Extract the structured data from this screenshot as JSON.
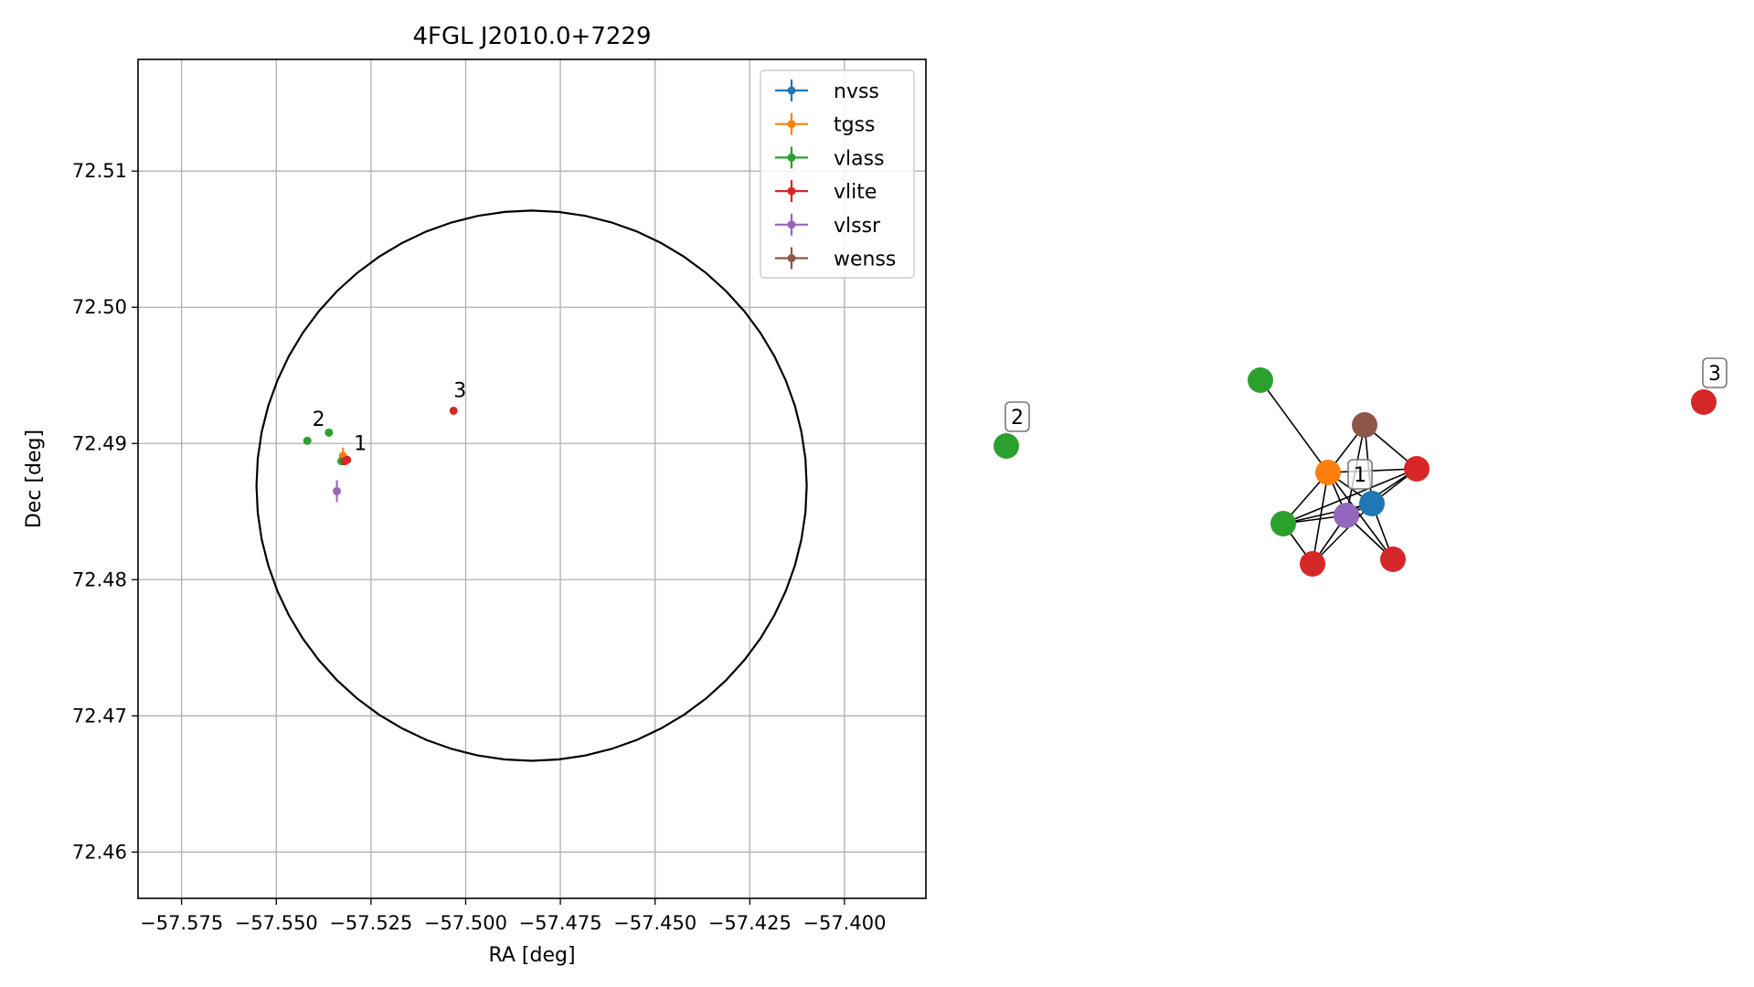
{
  "chart_data": [
    {
      "type": "scatter",
      "title": "4FGL J2010.0+7229",
      "xlabel": "RA [deg]",
      "ylabel": "Dec [deg]",
      "xlim": [
        -57.5865,
        -57.3785
      ],
      "ylim": [
        72.4566,
        72.5182
      ],
      "xticks": [
        -57.575,
        -57.55,
        -57.525,
        -57.5,
        -57.475,
        -57.45,
        -57.425,
        -57.4
      ],
      "xtick_labels": [
        "−57.575",
        "−57.550",
        "−57.525",
        "−57.500",
        "−57.475",
        "−57.450",
        "−57.425",
        "−57.400"
      ],
      "yticks": [
        72.46,
        72.47,
        72.48,
        72.49,
        72.5,
        72.51
      ],
      "ytick_labels": [
        "72.46",
        "72.47",
        "72.48",
        "72.49",
        "72.50",
        "72.51"
      ],
      "grid": true,
      "legend_position": "top-right",
      "circle": {
        "center_ra": -57.4826,
        "center_dec": 72.4869,
        "radius_dec": 0.0202,
        "color": "#000000"
      },
      "series": [
        {
          "name": "nvss",
          "color": "#1f77b4",
          "points": [
            {
              "x": -57.5323,
              "y": 72.4888,
              "xerr": 0.0008,
              "yerr": 0.0004
            }
          ]
        },
        {
          "name": "tgss",
          "color": "#ff7f0e",
          "points": [
            {
              "x": -57.5324,
              "y": 72.4891,
              "xerr": 0.0006,
              "yerr": 0.0006
            }
          ]
        },
        {
          "name": "vlass",
          "color": "#2ca02c",
          "points": [
            {
              "x": -57.5418,
              "y": 72.4902,
              "xerr": 0.0001,
              "yerr": 0.0001
            },
            {
              "x": -57.5361,
              "y": 72.4908,
              "xerr": 0.0001,
              "yerr": 0.0001
            },
            {
              "x": -57.5328,
              "y": 72.4887,
              "xerr": 0.0001,
              "yerr": 0.0001
            }
          ]
        },
        {
          "name": "vlite",
          "color": "#d62728",
          "points": [
            {
              "x": -57.5319,
              "y": 72.4887,
              "xerr": 0.0004,
              "yerr": 0.0002
            },
            {
              "x": -57.5032,
              "y": 72.4924,
              "xerr": 0.0002,
              "yerr": 0.0001
            },
            {
              "x": -57.5313,
              "y": 72.4888,
              "xerr": 0.0003,
              "yerr": 0.0001
            }
          ]
        },
        {
          "name": "vlssr",
          "color": "#9467bd",
          "points": [
            {
              "x": -57.534,
              "y": 72.4865,
              "xerr": 0.0001,
              "yerr": 0.0008
            }
          ]
        },
        {
          "name": "wenss",
          "color": "#8c564b",
          "points": []
        }
      ],
      "annotations": [
        {
          "text": "1",
          "x": -57.5295,
          "y": 72.4895
        },
        {
          "text": "2",
          "x": -57.5405,
          "y": 72.4913
        },
        {
          "text": "3",
          "x": -57.5032,
          "y": 72.4934
        }
      ]
    },
    {
      "type": "network",
      "nodes": [
        {
          "id": "n1",
          "color": "#2ca02c"
        },
        {
          "id": "n2",
          "color": "#1f77b4"
        },
        {
          "id": "n3",
          "color": "#ff7f0e"
        },
        {
          "id": "n4",
          "color": "#8c564b"
        },
        {
          "id": "n5",
          "color": "#d62728"
        },
        {
          "id": "n6",
          "color": "#9467bd"
        },
        {
          "id": "n7",
          "color": "#2ca02c"
        },
        {
          "id": "n8",
          "color": "#d62728"
        },
        {
          "id": "n9",
          "color": "#d62728"
        },
        {
          "id": "n10",
          "color": "#2ca02c"
        },
        {
          "id": "n11",
          "color": "#d62728"
        }
      ],
      "edges": [
        [
          "n1",
          "n3"
        ],
        [
          "n3",
          "n4"
        ],
        [
          "n3",
          "n5"
        ],
        [
          "n3",
          "n2"
        ],
        [
          "n3",
          "n6"
        ],
        [
          "n3",
          "n7"
        ],
        [
          "n3",
          "n8"
        ],
        [
          "n3",
          "n9"
        ],
        [
          "n4",
          "n2"
        ],
        [
          "n4",
          "n6"
        ],
        [
          "n4",
          "n5"
        ],
        [
          "n2",
          "n5"
        ],
        [
          "n2",
          "n6"
        ],
        [
          "n2",
          "n7"
        ],
        [
          "n2",
          "n8"
        ],
        [
          "n2",
          "n9"
        ],
        [
          "n6",
          "n5"
        ],
        [
          "n6",
          "n7"
        ],
        [
          "n6",
          "n8"
        ],
        [
          "n6",
          "n9"
        ],
        [
          "n7",
          "n8"
        ],
        [
          "n5",
          "n7"
        ]
      ],
      "labels": [
        {
          "text": "1",
          "node": "n2"
        },
        {
          "text": "2",
          "node": "n10"
        },
        {
          "text": "3",
          "node": "n11"
        }
      ]
    }
  ]
}
